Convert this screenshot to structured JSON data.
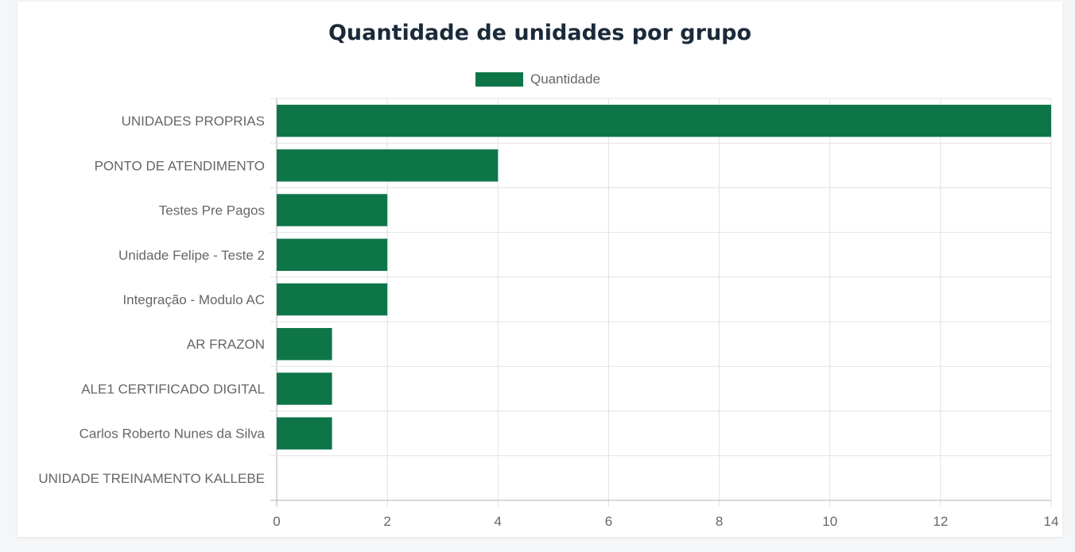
{
  "chart_data": {
    "type": "bar",
    "orientation": "horizontal",
    "title": "Quantidade de unidades por grupo",
    "categories": [
      "UNIDADES PROPRIAS",
      "PONTO DE ATENDIMENTO",
      "Testes Pre Pagos",
      "Unidade Felipe - Teste 2",
      "Integração - Modulo AC",
      "AR FRAZON",
      "ALE1 CERTIFICADO DIGITAL",
      "Carlos Roberto Nunes da Silva",
      "UNIDADE TREINAMENTO KALLEBE"
    ],
    "series": [
      {
        "name": "Quantidade",
        "values": [
          14,
          4,
          2,
          2,
          2,
          1,
          1,
          1,
          0
        ],
        "color": "#0e7549"
      }
    ],
    "xlim": [
      0,
      14
    ],
    "xticks": [
      0,
      2,
      4,
      6,
      8,
      10,
      12,
      14
    ],
    "grid": true,
    "legend_position": "top"
  }
}
